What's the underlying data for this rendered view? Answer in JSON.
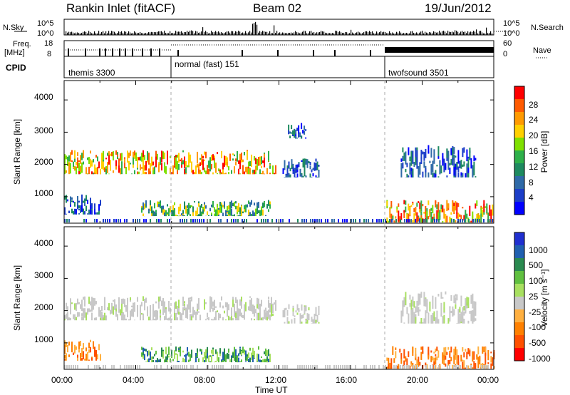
{
  "header": {
    "title": "Rankin Inlet (fitACF)",
    "beam": "Beam 02",
    "date": "19/Jun/2012"
  },
  "top_strip": {
    "left_label": "N.Sky",
    "left_ticks": [
      "10^5",
      "10^0"
    ],
    "right_ticks": [
      "10^5",
      "10^0"
    ],
    "right_label": "N.Search"
  },
  "freq_strip": {
    "left_label_line1": "Freq.",
    "left_label_line2": "[MHz]",
    "left_ticks": [
      "18",
      "8"
    ],
    "right_ticks": [
      "60",
      "0"
    ],
    "right_label": "Nave"
  },
  "cpid": {
    "label": "CPID",
    "segments": [
      {
        "name": "themis 3300",
        "start_hour": 0
      },
      {
        "name": "normal (fast) 151",
        "start_hour": 6
      },
      {
        "name": "twofsound 3501",
        "start_hour": 18
      }
    ]
  },
  "chart_data": [
    {
      "type": "heatmap",
      "ylabel": "Slant Range [km]",
      "xlabel": "Time UT",
      "xlim_hours": [
        0,
        24
      ],
      "ylim": [
        180,
        4600
      ],
      "x_ticks": [
        "00:00",
        "04:00",
        "08:00",
        "12:00",
        "16:00",
        "20:00",
        "00:00"
      ],
      "y_ticks": [
        1000,
        2000,
        3000,
        4000
      ],
      "colorbar": {
        "label": "Power [dB]",
        "ticks": [
          "28",
          "24",
          "20",
          "16",
          "12",
          "8",
          "4"
        ],
        "colors": [
          "#ff0000",
          "#ff5a00",
          "#ff9a00",
          "#ffd000",
          "#7fe000",
          "#2eb04a",
          "#1e8a60",
          "#2f6aa8",
          "#1c3ec8",
          "#0000ff"
        ]
      },
      "echo_regions": [
        {
          "t0": 0.0,
          "t1": 11.8,
          "r0": 1700,
          "r1": 2450,
          "level": "high"
        },
        {
          "t0": 0.0,
          "t1": 2.0,
          "r0": 450,
          "r1": 1100,
          "level": "low"
        },
        {
          "t0": 4.3,
          "t1": 11.5,
          "r0": 400,
          "r1": 900,
          "level": "mid"
        },
        {
          "t0": 12.2,
          "t1": 14.2,
          "r0": 1600,
          "r1": 2200,
          "level": "low"
        },
        {
          "t0": 12.5,
          "t1": 13.5,
          "r0": 2800,
          "r1": 3300,
          "level": "low"
        },
        {
          "t0": 18.0,
          "t1": 24.0,
          "r0": 200,
          "r1": 900,
          "level": "high"
        },
        {
          "t0": 18.8,
          "t1": 23.0,
          "r0": 1600,
          "r1": 2600,
          "level": "low"
        }
      ]
    },
    {
      "type": "heatmap",
      "ylabel": "Slant Range [km]",
      "xlabel": "Time UT",
      "xlim_hours": [
        0,
        24
      ],
      "ylim": [
        180,
        4600
      ],
      "x_ticks": [
        "00:00",
        "04:00",
        "08:00",
        "12:00",
        "16:00",
        "20:00",
        "00:00"
      ],
      "y_ticks": [
        1000,
        2000,
        3000,
        4000
      ],
      "colorbar": {
        "label": "Velocity [m s⁻¹]",
        "ticks": [
          "1000",
          "500",
          "100",
          "25",
          "-25",
          "-100",
          "-500",
          "-1000"
        ],
        "colors": [
          "#2030d0",
          "#2060b0",
          "#2a8a50",
          "#60c040",
          "#a8e060",
          "#c8c8c8",
          "#ffb040",
          "#ff8000",
          "#ff5000",
          "#ff0000"
        ]
      },
      "echo_regions": [
        {
          "t0": 0.0,
          "t1": 11.8,
          "r0": 1700,
          "r1": 2450,
          "level": "ground"
        },
        {
          "t0": 0.0,
          "t1": 2.0,
          "r0": 450,
          "r1": 1100,
          "level": "neg"
        },
        {
          "t0": 4.3,
          "t1": 11.5,
          "r0": 400,
          "r1": 900,
          "level": "pos"
        },
        {
          "t0": 12.2,
          "t1": 14.2,
          "r0": 1600,
          "r1": 2200,
          "level": "ground"
        },
        {
          "t0": 18.0,
          "t1": 24.0,
          "r0": 200,
          "r1": 900,
          "level": "neg"
        },
        {
          "t0": 18.8,
          "t1": 23.0,
          "r0": 1600,
          "r1": 2600,
          "level": "ground"
        }
      ]
    }
  ]
}
